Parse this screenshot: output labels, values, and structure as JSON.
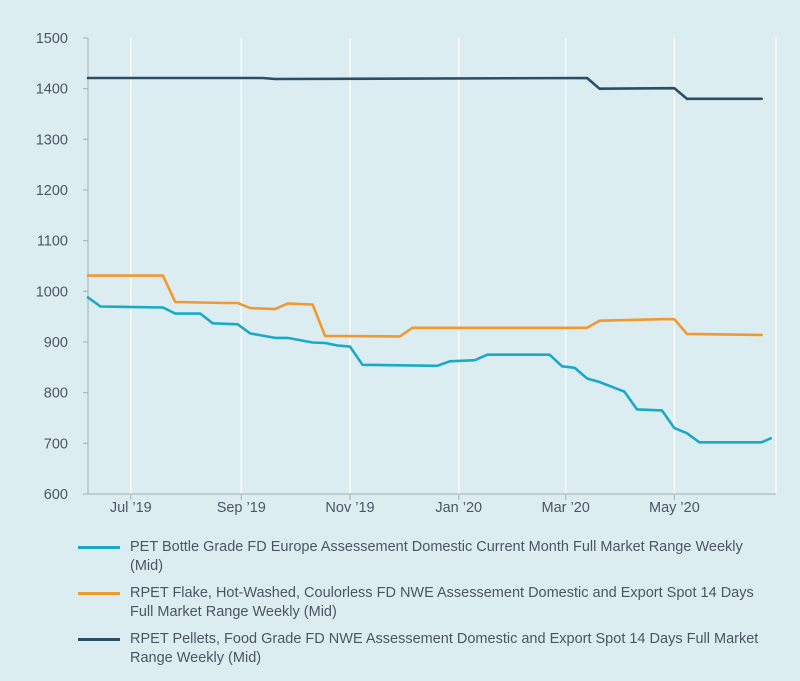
{
  "chart_data": {
    "type": "line",
    "title": "",
    "xlabel": "",
    "ylabel": "",
    "ylim": [
      600,
      1500
    ],
    "yticks": [
      600,
      700,
      800,
      900,
      1000,
      1100,
      1200,
      1300,
      1400,
      1500
    ],
    "xlim": [
      "2019-06-07",
      "2020-06-27"
    ],
    "xticks": [
      {
        "date": "2019-07-01",
        "label": "Jul ’19"
      },
      {
        "date": "2019-09-01",
        "label": "Sep ’19"
      },
      {
        "date": "2019-11-01",
        "label": "Nov ’19"
      },
      {
        "date": "2020-01-01",
        "label": "Jan ’20"
      },
      {
        "date": "2020-03-01",
        "label": "Mar ’20"
      },
      {
        "date": "2020-05-01",
        "label": "May ’20"
      }
    ],
    "grid": "vertical",
    "legend_position": "bottom",
    "series": [
      {
        "name": "PET Bottle Grade FD Europe Assessement Domestic Current Month Full Market Range Weekly (Mid)",
        "color": "#1aa9c9",
        "points": [
          [
            "2019-06-07",
            988
          ],
          [
            "2019-06-14",
            970
          ],
          [
            "2019-07-19",
            968
          ],
          [
            "2019-07-26",
            956
          ],
          [
            "2019-08-09",
            956
          ],
          [
            "2019-08-16",
            937
          ],
          [
            "2019-08-30",
            935
          ],
          [
            "2019-09-06",
            917
          ],
          [
            "2019-09-20",
            908
          ],
          [
            "2019-09-27",
            908
          ],
          [
            "2019-10-11",
            899
          ],
          [
            "2019-10-18",
            898
          ],
          [
            "2019-10-25",
            893
          ],
          [
            "2019-11-01",
            891
          ],
          [
            "2019-11-08",
            855
          ],
          [
            "2019-12-20",
            853
          ],
          [
            "2019-12-27",
            862
          ],
          [
            "2020-01-10",
            864
          ],
          [
            "2020-01-17",
            875
          ],
          [
            "2020-02-21",
            875
          ],
          [
            "2020-02-28",
            852
          ],
          [
            "2020-03-06",
            849
          ],
          [
            "2020-03-13",
            828
          ],
          [
            "2020-03-20",
            821
          ],
          [
            "2020-04-03",
            802
          ],
          [
            "2020-04-10",
            767
          ],
          [
            "2020-04-24",
            765
          ],
          [
            "2020-05-01",
            730
          ],
          [
            "2020-05-08",
            720
          ],
          [
            "2020-05-15",
            702
          ],
          [
            "2020-06-19",
            702
          ],
          [
            "2020-06-24",
            710
          ]
        ]
      },
      {
        "name": "RPET Flake, Hot-Washed, Coulorless FD NWE Assessement Domestic and Export Spot 14 Days Full Market Range Weekly (Mid)",
        "color": "#f2992e",
        "points": [
          [
            "2019-06-07",
            1031
          ],
          [
            "2019-07-19",
            1031
          ],
          [
            "2019-07-26",
            979
          ],
          [
            "2019-08-23",
            977
          ],
          [
            "2019-08-30",
            977
          ],
          [
            "2019-09-06",
            967
          ],
          [
            "2019-09-20",
            965
          ],
          [
            "2019-09-27",
            976
          ],
          [
            "2019-10-11",
            974
          ],
          [
            "2019-10-18",
            912
          ],
          [
            "2019-11-29",
            911
          ],
          [
            "2019-12-06",
            928
          ],
          [
            "2020-03-13",
            928
          ],
          [
            "2020-03-20",
            942
          ],
          [
            "2020-04-24",
            945
          ],
          [
            "2020-05-01",
            945
          ],
          [
            "2020-05-08",
            916
          ],
          [
            "2020-06-19",
            914
          ]
        ]
      },
      {
        "name": "RPET Pellets, Food Grade FD NWE Assessement Domestic and Export Spot 14 Days Full Market Range Weekly (Mid)",
        "color": "#2a4e65",
        "points": [
          [
            "2019-06-07",
            1421
          ],
          [
            "2019-09-13",
            1421
          ],
          [
            "2019-09-20",
            1419
          ],
          [
            "2020-03-13",
            1421
          ],
          [
            "2020-03-20",
            1400
          ],
          [
            "2020-05-01",
            1401
          ],
          [
            "2020-05-08",
            1380
          ],
          [
            "2020-06-19",
            1380
          ]
        ]
      }
    ]
  }
}
